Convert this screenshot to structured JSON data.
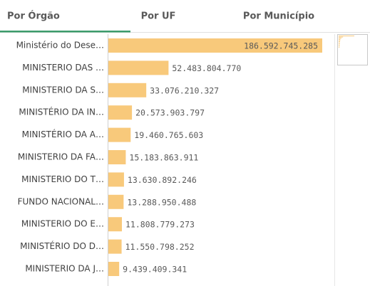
{
  "tabs": [
    "Por Órgão",
    "Por UF",
    "Por Município"
  ],
  "chart_data": {
    "type": "bar",
    "orientation": "horizontal",
    "color": "#f8c97b",
    "categories": [
      "Ministério do Dese…",
      "MINISTERIO DAS …",
      "MINISTERIO DA S…",
      "MINISTÉRIO DA IN…",
      "MINISTÉRIO DA A…",
      "MINISTERIO DA FA…",
      "MINISTERIO DO T…",
      "FUNDO NACIONAL…",
      "MINISTERIO DO E…",
      "MINISTÉRIO DO D…",
      "MINISTERIO DA J…"
    ],
    "values": [
      186592745285,
      52483804770,
      33076210327,
      20573903797,
      19460765603,
      15183863911,
      13630892246,
      13288950488,
      11808779273,
      11550798252,
      9439409341
    ],
    "value_labels": [
      "186.592.745.285",
      "52.483.804.770",
      "33.076.210.327",
      "20.573.903.797",
      "19.460.765.603",
      "15.183.863.911",
      "13.630.892.246",
      "13.288.950.488",
      "11.808.779.273",
      "11.550.798.252",
      "9.439.409.341"
    ]
  }
}
